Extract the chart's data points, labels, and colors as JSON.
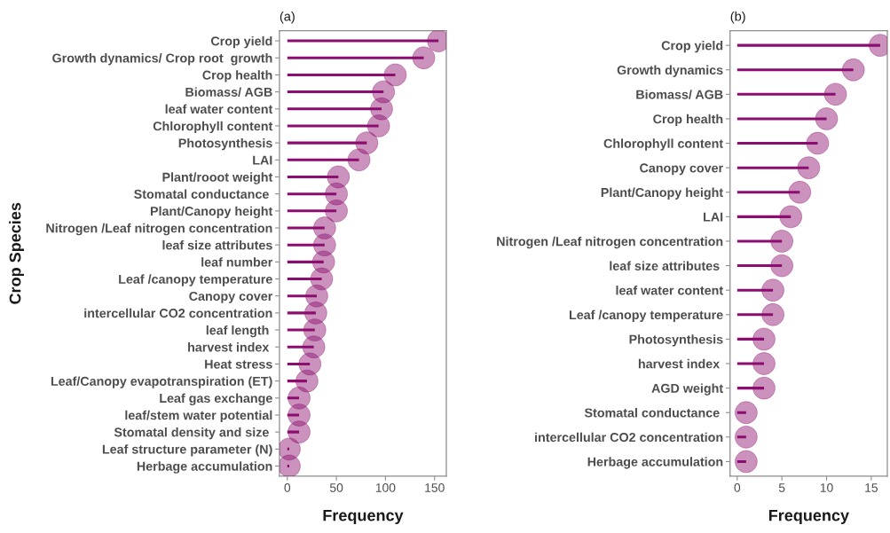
{
  "chart_data": [
    {
      "type": "lollipop",
      "orientation": "horizontal",
      "title": "(a)",
      "xlabel": "Frequency",
      "ylabel": "Crop Species",
      "categories": [
        "Crop yield",
        "Growth dynamics/ Crop root  growth",
        "Crop health",
        "Biomass/ AGB",
        "leaf water content",
        "Chlorophyll content",
        "Photosynthesis",
        "LAI",
        "Plant/rooot weight",
        "Stomatal conductance ",
        "Plant/Canopy height",
        "Nitrogen /Leaf nitrogen concentration",
        "leaf size attributes",
        "leaf number",
        "Leaf /canopy temperature",
        "Canopy cover",
        "intercellular CO2 concentration",
        "leaf length ",
        "harvest index ",
        "Heat stress",
        "Leaf/Canopy evapotranspiration (ET)",
        "Leaf gas exchange",
        "leaf/stem water potential",
        "Stomatal density and size ",
        "Leaf structure parameter (N)",
        "Herbage accumulation"
      ],
      "values": [
        154,
        139,
        110,
        98,
        96,
        93,
        81,
        73,
        52,
        50,
        50,
        38,
        38,
        37,
        35,
        30,
        29,
        28,
        27,
        23,
        20,
        12,
        12,
        12,
        2,
        2
      ],
      "color": "#8b0d6f",
      "marker": "circle",
      "xlim": [
        -8,
        162
      ],
      "xticks": [
        0,
        50,
        100,
        150
      ]
    },
    {
      "type": "lollipop",
      "orientation": "horizontal",
      "title": "(b)",
      "xlabel": "Frequency",
      "categories": [
        "Crop yield",
        "Growth dynamics",
        "Biomass/ AGB",
        "Crop health",
        "Chlorophyll content",
        "Canopy cover",
        "Plant/Canopy height",
        "LAI",
        "Nitrogen /Leaf nitrogen concentration",
        "leaf size attributes ",
        "leaf water content",
        "Leaf /canopy temperature",
        "Photosynthesis",
        "harvest index ",
        "AGD weight",
        "Stomatal conductance ",
        "intercellular CO2 concentration",
        "Herbage accumulation"
      ],
      "values": [
        16,
        13,
        11,
        10,
        9,
        8,
        7,
        6,
        5,
        5,
        4,
        4,
        3,
        3,
        3,
        1,
        1,
        1
      ],
      "color": "#8b0d6f",
      "marker": "circle",
      "xlim": [
        -0.8,
        16.8
      ],
      "xticks": [
        0,
        5,
        10,
        15
      ]
    }
  ]
}
